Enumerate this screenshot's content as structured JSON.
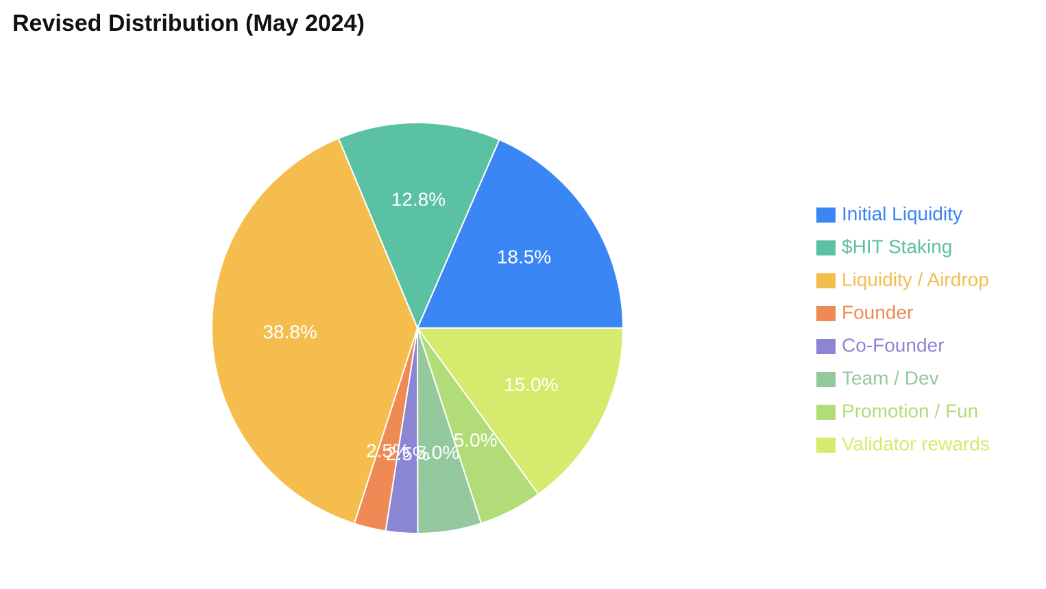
{
  "chart_data": {
    "type": "pie",
    "title": "Revised Distribution (May 2024)",
    "categories": [
      "Initial Liquidity",
      "$HIT Staking",
      "Liquidity / Airdrop",
      "Founder",
      "Co-Founder",
      "Team / Dev",
      "Promotion / Fun",
      "Validator rewards"
    ],
    "values": [
      18.5,
      12.8,
      38.8,
      2.5,
      2.5,
      5.0,
      5.0,
      15.0
    ],
    "value_labels": [
      "18.5%",
      "12.8%",
      "38.8%",
      "2.5%",
      "2.5%",
      "5.0%",
      "5.0%",
      "15.0%"
    ],
    "colors": [
      "#3b86f5",
      "#5bc1a3",
      "#f4bd4e",
      "#ef8a54",
      "#8a86d4",
      "#94c99e",
      "#b2dc78",
      "#d6eb6e"
    ],
    "legend": "right"
  }
}
